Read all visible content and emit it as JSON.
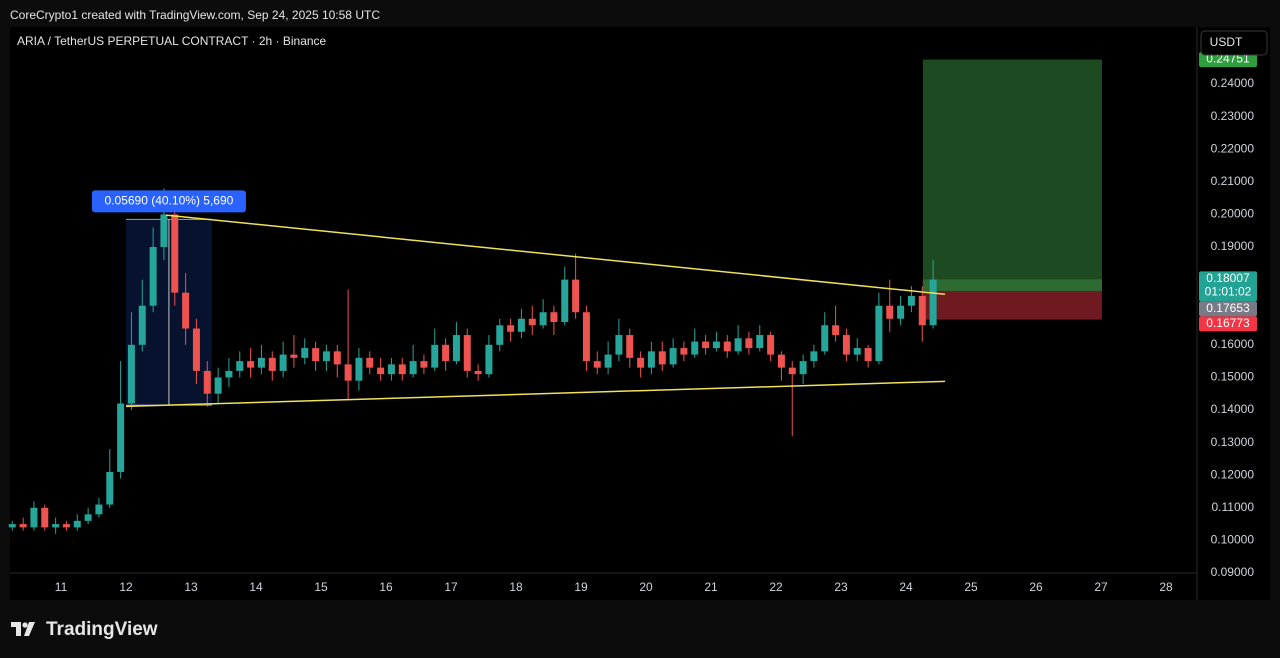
{
  "header": {
    "credit": "CoreCrypto1 created with TradingView.com, Sep 24, 2025 10:58 UTC"
  },
  "brand": "TradingView",
  "chart_data": {
    "type": "candlestick",
    "title": "ARIA / TetherUS PERPETUAL CONTRACT · 2h · Binance",
    "currency": "USDT",
    "up_color": "#26a69a",
    "down_color": "#ef5350",
    "xlim": [
      10.215,
      28.477
    ],
    "ylim": [
      0.09,
      0.2575
    ],
    "xticks": [
      11,
      12,
      13,
      14,
      15,
      16,
      17,
      18,
      19,
      20,
      21,
      22,
      23,
      24,
      25,
      26,
      27,
      28
    ],
    "yticks": [
      {
        "value": 0.09,
        "label": "0.09000"
      },
      {
        "value": 0.1,
        "label": "0.10000"
      },
      {
        "value": 0.11,
        "label": "0.11000"
      },
      {
        "value": 0.12,
        "label": "0.12000"
      },
      {
        "value": 0.13,
        "label": "0.13000"
      },
      {
        "value": 0.14,
        "label": "0.14000"
      },
      {
        "value": 0.15,
        "label": "0.15000"
      },
      {
        "value": 0.16,
        "label": "0.16000"
      },
      {
        "value": 0.17,
        "label": "0.17000"
      },
      {
        "value": 0.18,
        "label": "0.18000"
      },
      {
        "value": 0.19,
        "label": "0.19000"
      },
      {
        "value": 0.2,
        "label": "0.20000"
      },
      {
        "value": 0.21,
        "label": "0.21000"
      },
      {
        "value": 0.22,
        "label": "0.22000"
      },
      {
        "value": 0.23,
        "label": "0.23000"
      },
      {
        "value": 0.24,
        "label": "0.24000"
      }
    ],
    "grid": false,
    "x": [
      10.25,
      10.417,
      10.583,
      10.75,
      10.917,
      11.083,
      11.25,
      11.417,
      11.583,
      11.75,
      11.917,
      12.083,
      12.25,
      12.417,
      12.583,
      12.75,
      12.917,
      13.083,
      13.25,
      13.417,
      13.583,
      13.75,
      13.917,
      14.083,
      14.25,
      14.417,
      14.583,
      14.75,
      14.917,
      15.083,
      15.25,
      15.417,
      15.583,
      15.75,
      15.917,
      16.083,
      16.25,
      16.417,
      16.583,
      16.75,
      16.917,
      17.083,
      17.25,
      17.417,
      17.583,
      17.75,
      17.917,
      18.083,
      18.25,
      18.417,
      18.583,
      18.75,
      18.917,
      19.083,
      19.25,
      19.417,
      19.583,
      19.75,
      19.917,
      20.083,
      20.25,
      20.417,
      20.583,
      20.75,
      20.917,
      21.083,
      21.25,
      21.417,
      21.583,
      21.75,
      21.917,
      22.083,
      22.25,
      22.417,
      22.583,
      22.75,
      22.917,
      23.083,
      23.25,
      23.417,
      23.583,
      23.75,
      23.917,
      24.083,
      24.25,
      24.417
    ],
    "open": [
      0.104,
      0.105,
      0.104,
      0.11,
      0.104,
      0.105,
      0.104,
      0.106,
      0.108,
      0.111,
      0.121,
      0.142,
      0.16,
      0.172,
      0.19,
      0.2,
      0.176,
      0.165,
      0.152,
      0.145,
      0.15,
      0.152,
      0.155,
      0.153,
      0.156,
      0.152,
      0.157,
      0.156,
      0.159,
      0.155,
      0.158,
      0.154,
      0.149,
      0.156,
      0.153,
      0.151,
      0.154,
      0.151,
      0.155,
      0.153,
      0.16,
      0.155,
      0.163,
      0.152,
      0.151,
      0.16,
      0.166,
      0.164,
      0.168,
      0.166,
      0.17,
      0.167,
      0.18,
      0.17,
      0.155,
      0.153,
      0.157,
      0.163,
      0.156,
      0.153,
      0.158,
      0.154,
      0.159,
      0.157,
      0.161,
      0.159,
      0.161,
      0.158,
      0.162,
      0.159,
      0.163,
      0.157,
      0.153,
      0.151,
      0.155,
      0.158,
      0.166,
      0.163,
      0.157,
      0.159,
      0.155,
      0.172,
      0.168,
      0.172,
      0.175,
      0.166
    ],
    "high": [
      0.106,
      0.107,
      0.112,
      0.111,
      0.107,
      0.106,
      0.108,
      0.11,
      0.113,
      0.128,
      0.155,
      0.17,
      0.18,
      0.196,
      0.208,
      0.203,
      0.182,
      0.168,
      0.155,
      0.153,
      0.156,
      0.158,
      0.159,
      0.16,
      0.158,
      0.161,
      0.163,
      0.162,
      0.161,
      0.16,
      0.16,
      0.177,
      0.159,
      0.158,
      0.156,
      0.156,
      0.156,
      0.16,
      0.157,
      0.165,
      0.162,
      0.167,
      0.165,
      0.154,
      0.163,
      0.168,
      0.168,
      0.171,
      0.172,
      0.174,
      0.172,
      0.184,
      0.188,
      0.172,
      0.158,
      0.161,
      0.168,
      0.165,
      0.158,
      0.161,
      0.161,
      0.162,
      0.161,
      0.165,
      0.163,
      0.164,
      0.163,
      0.166,
      0.164,
      0.166,
      0.164,
      0.158,
      0.155,
      0.157,
      0.16,
      0.17,
      0.172,
      0.165,
      0.162,
      0.16,
      0.176,
      0.18,
      0.175,
      0.178,
      0.178,
      0.186
    ],
    "low": [
      0.103,
      0.103,
      0.103,
      0.103,
      0.102,
      0.103,
      0.103,
      0.105,
      0.107,
      0.11,
      0.119,
      0.14,
      0.158,
      0.17,
      0.186,
      0.172,
      0.16,
      0.148,
      0.141,
      0.142,
      0.147,
      0.15,
      0.15,
      0.151,
      0.149,
      0.15,
      0.153,
      0.154,
      0.152,
      0.152,
      0.15,
      0.143,
      0.146,
      0.151,
      0.149,
      0.149,
      0.149,
      0.15,
      0.151,
      0.152,
      0.152,
      0.154,
      0.15,
      0.149,
      0.15,
      0.158,
      0.161,
      0.162,
      0.163,
      0.165,
      0.163,
      0.166,
      0.168,
      0.152,
      0.151,
      0.151,
      0.155,
      0.153,
      0.15,
      0.151,
      0.152,
      0.153,
      0.155,
      0.156,
      0.157,
      0.158,
      0.156,
      0.157,
      0.157,
      0.158,
      0.155,
      0.149,
      0.132,
      0.148,
      0.153,
      0.157,
      0.161,
      0.155,
      0.155,
      0.153,
      0.154,
      0.164,
      0.166,
      0.17,
      0.161,
      0.165
    ],
    "close": [
      0.105,
      0.104,
      0.11,
      0.104,
      0.105,
      0.104,
      0.106,
      0.108,
      0.111,
      0.121,
      0.142,
      0.16,
      0.172,
      0.19,
      0.2,
      0.176,
      0.165,
      0.152,
      0.145,
      0.15,
      0.152,
      0.155,
      0.153,
      0.156,
      0.152,
      0.157,
      0.156,
      0.159,
      0.155,
      0.158,
      0.154,
      0.149,
      0.156,
      0.153,
      0.151,
      0.154,
      0.151,
      0.155,
      0.153,
      0.16,
      0.155,
      0.163,
      0.152,
      0.151,
      0.16,
      0.166,
      0.164,
      0.168,
      0.166,
      0.17,
      0.167,
      0.18,
      0.17,
      0.155,
      0.153,
      0.157,
      0.163,
      0.156,
      0.153,
      0.158,
      0.154,
      0.159,
      0.157,
      0.161,
      0.159,
      0.161,
      0.158,
      0.162,
      0.159,
      0.163,
      0.157,
      0.153,
      0.151,
      0.155,
      0.158,
      0.166,
      0.163,
      0.157,
      0.159,
      0.155,
      0.172,
      0.168,
      0.172,
      0.175,
      0.166,
      0.18
    ],
    "trendlines": [
      {
        "x": [
          12.615,
          24.6
        ],
        "y": [
          0.1998,
          0.1755
        ],
        "color": "#f0e15a"
      },
      {
        "x": [
          12.0,
          24.6
        ],
        "y": [
          0.1411,
          0.1488
        ],
        "color": "#f0e15a"
      }
    ],
    "measure": {
      "x_start": 12.0,
      "x_end": 13.32,
      "low": 0.1415,
      "high": 0.1985,
      "label": "0.05690 (40.10%) 5,690"
    },
    "position": {
      "x_start": 24.26,
      "x_end": 27.015,
      "target": 0.24751,
      "current": 0.18007,
      "entry": 0.17653,
      "stop": 0.16773,
      "countdown": "01:01:02"
    }
  }
}
